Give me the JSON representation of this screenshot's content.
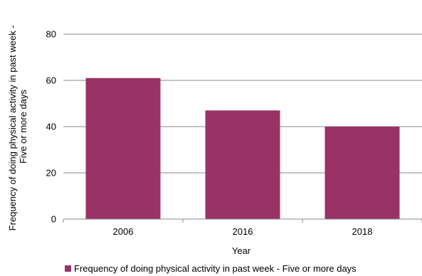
{
  "chart_data": {
    "type": "bar",
    "title": "",
    "categories": [
      "2006",
      "2016",
      "2018"
    ],
    "series": [
      {
        "name": "Frequency of doing physical activity in past week - Five or more days",
        "values": [
          61,
          47,
          40
        ],
        "color": "#993366"
      }
    ],
    "xlabel": "Year",
    "ylabel_lines": [
      "Frequency of doing physical activity in past week -",
      "Five or more days"
    ],
    "ylim": [
      0,
      80
    ],
    "yticks": [
      0,
      20,
      40,
      60,
      80
    ],
    "grid": true,
    "legend_position": "bottom"
  }
}
